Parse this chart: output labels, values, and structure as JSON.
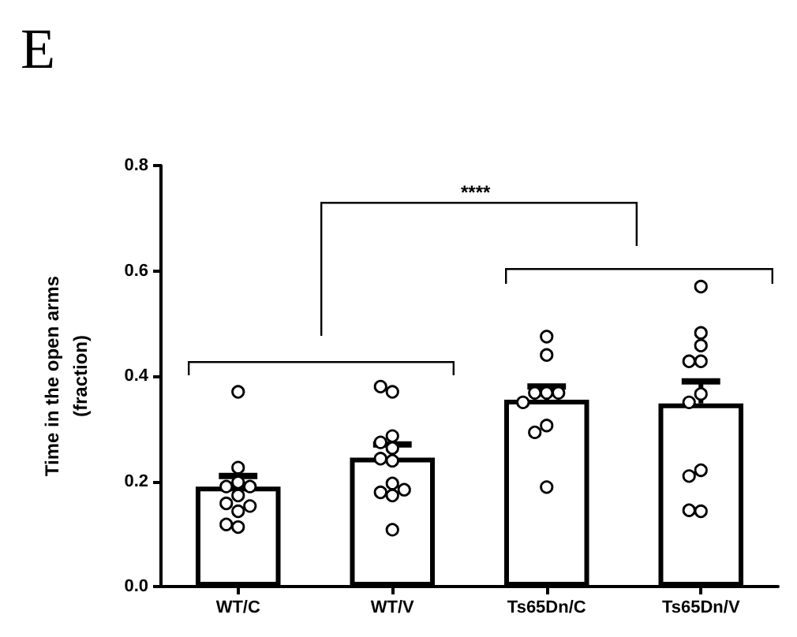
{
  "chart_data": {
    "type": "bar",
    "title": "E",
    "ylabel": "Time in the open arms\n(fraction)",
    "categories": [
      "WT/C",
      "WT/V",
      "Ts65Dn/C",
      "Ts65Dn/V"
    ],
    "series": [
      {
        "color": "#ffffff",
        "values": [
          0.19,
          0.245,
          0.355,
          0.348
        ],
        "errors": [
          [
            0.19,
            0.21
          ],
          [
            0.245,
            0.27
          ],
          [
            0.355,
            0.38
          ],
          [
            0.348,
            0.39
          ]
        ]
      },
      {
        "type": "scatter",
        "color": "#ffffff",
        "x": [
          "WT/C",
          "WT/C",
          "WT/C",
          "WT/C",
          "WT/C",
          "WT/C",
          "WT/C",
          "WT/C",
          "WT/C",
          "WT/C",
          "WT/C",
          "WT/V",
          "WT/V",
          "WT/V",
          "WT/V",
          "WT/V",
          "WT/V",
          "WT/V",
          "WT/V",
          "WT/V",
          "WT/V",
          "WT/V",
          "WT/V",
          "Ts65Dn/C",
          "Ts65Dn/C",
          "Ts65Dn/C",
          "Ts65Dn/C",
          "Ts65Dn/C",
          "Ts65Dn/C",
          "Ts65Dn/C",
          "Ts65Dn/C",
          "Ts65Dn/C",
          "Ts65Dn/V",
          "Ts65Dn/V",
          "Ts65Dn/V",
          "Ts65Dn/V",
          "Ts65Dn/V",
          "Ts65Dn/V",
          "Ts65Dn/V",
          "Ts65Dn/V",
          "Ts65Dn/V",
          "Ts65Dn/V",
          "Ts65Dn/V"
        ],
        "values": [
          0.37,
          0.226,
          0.198,
          0.19,
          0.19,
          0.173,
          0.158,
          0.153,
          0.143,
          0.113,
          0.118,
          0.37,
          0.38,
          0.286,
          0.263,
          0.274,
          0.239,
          0.243,
          0.196,
          0.179,
          0.173,
          0.184,
          0.108,
          0.475,
          0.44,
          0.368,
          0.368,
          0.368,
          0.35,
          0.306,
          0.293,
          0.189,
          0.57,
          0.482,
          0.458,
          0.428,
          0.428,
          0.366,
          0.35,
          0.221,
          0.21,
          0.143,
          0.145
        ]
      }
    ],
    "ylim": [
      0,
      0.8
    ],
    "yticks": [
      {
        "value": 0,
        "label": "0.0"
      },
      {
        "value": 0.2,
        "label": "0.2"
      },
      {
        "value": 0.4,
        "label": "0.4"
      },
      {
        "value": 0.6,
        "label": "0.6"
      },
      {
        "value": 0.8,
        "label": "0.8"
      }
    ],
    "grid": false,
    "marker": "circle",
    "annotations": [
      "****"
    ]
  }
}
